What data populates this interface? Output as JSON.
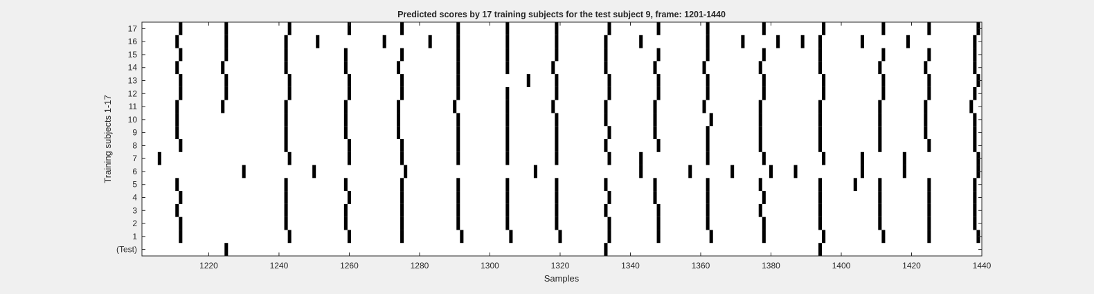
{
  "chart_data": {
    "type": "raster",
    "title": "Predicted scores by 17 training subjects for the test subject 9, frame: 1201-1440",
    "xlabel": "Samples",
    "ylabel": "Training subjects 1-17",
    "xlim": [
      1201,
      1440
    ],
    "xticks": [
      1220,
      1240,
      1260,
      1280,
      1300,
      1320,
      1340,
      1360,
      1380,
      1400,
      1420,
      1440
    ],
    "ytick_labels": [
      "(Test)",
      "1",
      "2",
      "3",
      "4",
      "5",
      "6",
      "7",
      "8",
      "9",
      "10",
      "11",
      "12",
      "13",
      "14",
      "15",
      "16",
      "17"
    ],
    "grid": false,
    "rows": [
      {
        "label": "(Test)",
        "events": [
          1225,
          1333,
          1394
        ]
      },
      {
        "label": "1",
        "events": [
          1212,
          1243,
          1260,
          1275,
          1292,
          1306,
          1320,
          1334,
          1348,
          1363,
          1378,
          1395,
          1412,
          1425,
          1439
        ]
      },
      {
        "label": "2",
        "events": [
          1212,
          1242,
          1259,
          1275,
          1291,
          1305,
          1319,
          1334,
          1348,
          1362,
          1378,
          1394,
          1411,
          1425,
          1438
        ]
      },
      {
        "label": "3",
        "events": [
          1211,
          1242,
          1259,
          1275,
          1291,
          1305,
          1319,
          1333,
          1348,
          1362,
          1377,
          1394,
          1411,
          1425,
          1438
        ]
      },
      {
        "label": "4",
        "events": [
          1212,
          1242,
          1260,
          1275,
          1291,
          1305,
          1319,
          1334,
          1347,
          1362,
          1378,
          1394,
          1411,
          1425,
          1438
        ]
      },
      {
        "label": "5",
        "events": [
          1211,
          1242,
          1259,
          1275,
          1291,
          1305,
          1319,
          1333,
          1347,
          1362,
          1377,
          1394,
          1404,
          1411,
          1425,
          1438
        ]
      },
      {
        "label": "6",
        "events": [
          1230,
          1250,
          1276,
          1313,
          1343,
          1357,
          1369,
          1380,
          1387,
          1406,
          1418,
          1439
        ]
      },
      {
        "label": "7",
        "events": [
          1206,
          1243,
          1260,
          1275,
          1291,
          1305,
          1319,
          1334,
          1343,
          1362,
          1378,
          1395,
          1406,
          1418,
          1439
        ]
      },
      {
        "label": "8",
        "events": [
          1212,
          1242,
          1260,
          1275,
          1291,
          1305,
          1319,
          1333,
          1348,
          1362,
          1377,
          1394,
          1411,
          1425,
          1438
        ]
      },
      {
        "label": "9",
        "events": [
          1211,
          1242,
          1259,
          1274,
          1291,
          1305,
          1319,
          1334,
          1347,
          1362,
          1377,
          1394,
          1411,
          1424,
          1438
        ]
      },
      {
        "label": "10",
        "events": [
          1211,
          1242,
          1259,
          1274,
          1291,
          1305,
          1319,
          1333,
          1347,
          1363,
          1377,
          1394,
          1411,
          1424,
          1438
        ]
      },
      {
        "label": "11",
        "events": [
          1211,
          1224,
          1242,
          1259,
          1274,
          1290,
          1305,
          1318,
          1333,
          1347,
          1361,
          1377,
          1394,
          1411,
          1424,
          1437
        ]
      },
      {
        "label": "12",
        "events": [
          1212,
          1225,
          1243,
          1260,
          1275,
          1291,
          1305,
          1319,
          1334,
          1348,
          1362,
          1378,
          1395,
          1412,
          1425,
          1438
        ]
      },
      {
        "label": "13",
        "events": [
          1212,
          1225,
          1243,
          1260,
          1275,
          1291,
          1311,
          1319,
          1334,
          1348,
          1362,
          1378,
          1395,
          1412,
          1425,
          1439
        ]
      },
      {
        "label": "14",
        "events": [
          1211,
          1224,
          1242,
          1259,
          1274,
          1291,
          1305,
          1318,
          1333,
          1347,
          1361,
          1377,
          1394,
          1411,
          1424,
          1438
        ]
      },
      {
        "label": "15",
        "events": [
          1212,
          1225,
          1242,
          1259,
          1275,
          1291,
          1305,
          1319,
          1333,
          1348,
          1362,
          1378,
          1394,
          1412,
          1425,
          1438
        ]
      },
      {
        "label": "16",
        "events": [
          1211,
          1225,
          1242,
          1251,
          1270,
          1283,
          1291,
          1305,
          1319,
          1333,
          1343,
          1362,
          1372,
          1382,
          1389,
          1394,
          1406,
          1419,
          1438
        ]
      },
      {
        "label": "17",
        "events": [
          1212,
          1225,
          1243,
          1260,
          1275,
          1291,
          1305,
          1319,
          1334,
          1348,
          1362,
          1378,
          1395,
          1412,
          1425,
          1439
        ]
      }
    ]
  }
}
